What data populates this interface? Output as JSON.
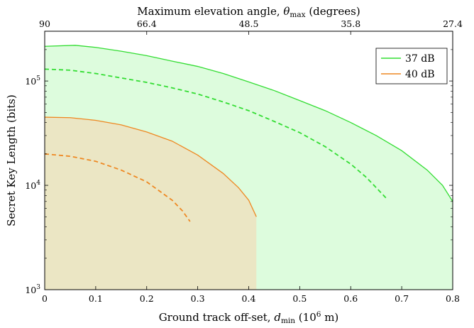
{
  "chart_data": {
    "type": "line",
    "xlabel": "Ground track off-set, d_min (10^6 m)",
    "xlabel_parts": {
      "main": "Ground track off-set, ",
      "var": "d",
      "sub": "min",
      "unit_open": " (10",
      "exp": "6",
      "unit_close": " m)"
    },
    "x2label": "Maximum elevation angle, θ_max (degrees)",
    "x2label_parts": {
      "main": "Maximum elevation angle, ",
      "var": "θ",
      "sub": "max",
      "unit": " (degrees)"
    },
    "ylabel": "Secret Key Length (bits)",
    "xlim": [
      0,
      0.8
    ],
    "ylim": [
      1000,
      300000
    ],
    "yscale": "log",
    "x_ticks": [
      {
        "value": 0,
        "label": "0"
      },
      {
        "value": 0.1,
        "label": "0.1"
      },
      {
        "value": 0.2,
        "label": "0.2"
      },
      {
        "value": 0.3,
        "label": "0.3"
      },
      {
        "value": 0.4,
        "label": "0.4"
      },
      {
        "value": 0.5,
        "label": "0.5"
      },
      {
        "value": 0.6,
        "label": "0.6"
      },
      {
        "value": 0.7,
        "label": "0.7"
      },
      {
        "value": 0.8,
        "label": "0.8"
      }
    ],
    "x2_ticks": [
      {
        "value": 0,
        "label": "90"
      },
      {
        "value": 0.2,
        "label": "66.4"
      },
      {
        "value": 0.4,
        "label": "48.5"
      },
      {
        "value": 0.6,
        "label": "35.8"
      },
      {
        "value": 0.8,
        "label": "27.4"
      }
    ],
    "y_ticks": [
      {
        "value": 1000,
        "base": "10",
        "exp": "3"
      },
      {
        "value": 10000,
        "base": "10",
        "exp": "4"
      },
      {
        "value": 100000,
        "base": "10",
        "exp": "5"
      }
    ],
    "legend": {
      "position": "top-right"
    },
    "series": [
      {
        "name": "37 dB",
        "color": "#33dd33",
        "fill": "#ddfcdd",
        "style": "solid",
        "x": [
          0,
          0.06,
          0.1,
          0.15,
          0.2,
          0.25,
          0.3,
          0.35,
          0.4,
          0.45,
          0.5,
          0.55,
          0.6,
          0.65,
          0.7,
          0.75,
          0.78,
          0.8
        ],
        "y": [
          215000,
          220000,
          210000,
          193000,
          175000,
          155000,
          138000,
          118000,
          98000,
          81000,
          65000,
          52000,
          40000,
          30000,
          21500,
          14000,
          10000,
          7000
        ]
      },
      {
        "name": "",
        "color": "#33dd33",
        "style": "dashed",
        "x": [
          0,
          0.05,
          0.1,
          0.15,
          0.2,
          0.25,
          0.3,
          0.35,
          0.4,
          0.45,
          0.5,
          0.55,
          0.6,
          0.63,
          0.65,
          0.67
        ],
        "y": [
          130000,
          127000,
          118000,
          107000,
          97000,
          86000,
          75000,
          63000,
          52000,
          41000,
          32000,
          23500,
          16000,
          12000,
          9500,
          7500
        ]
      },
      {
        "name": "40 dB",
        "color": "#ee8822",
        "fill": "#ebe6c4",
        "style": "solid",
        "x": [
          0,
          0.05,
          0.1,
          0.15,
          0.2,
          0.25,
          0.3,
          0.35,
          0.38,
          0.4,
          0.415
        ],
        "y": [
          45000,
          44500,
          42000,
          38000,
          32500,
          26500,
          19500,
          13000,
          9500,
          7200,
          5000
        ]
      },
      {
        "name": "",
        "color": "#ee8822",
        "style": "dashed",
        "x": [
          0,
          0.05,
          0.1,
          0.15,
          0.2,
          0.25,
          0.27,
          0.285
        ],
        "y": [
          20000,
          19000,
          17000,
          14000,
          10800,
          7200,
          5700,
          4500
        ]
      }
    ]
  }
}
